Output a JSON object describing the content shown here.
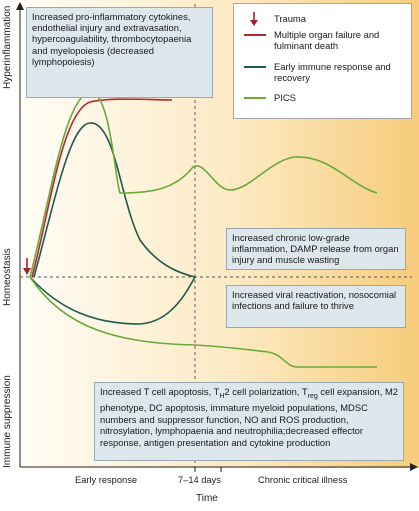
{
  "y_axis": {
    "top_label": "Hyperinflammation",
    "middle_label": "Homeostasis",
    "bottom_label": "Immune suppression"
  },
  "x_axis": {
    "title": "Time",
    "early_label": "Early response",
    "mid_label": "7–14 days",
    "late_label": "Chronic critical illness"
  },
  "legend": {
    "trauma": "Trauma",
    "death": "Multiple organ failure and fulminant death",
    "recovery": "Early immune response and recovery",
    "pics": "PICS"
  },
  "boxes": {
    "hyperinflammation": "Increased pro-inflammatory cytokines, endothelial injury and extravasation, hypercoagulability, thrombocytopaenia and myelopoiesis (decreased lymphopoiesis)",
    "chronic_inflammation": "Increased chronic low-grade inflammation, DAMP release from organ injury and muscle wasting",
    "viral": "Increased viral reactivation, nosocomial infections and failure to thrive",
    "suppression_line1_pre": "Increased T cell apoptosis, T",
    "suppression_line1_sub": "H",
    "suppression_line1_mid": "2 cell polarization, T",
    "suppression_line1_sub2": "reg",
    "suppression_line1_post": " cell",
    "suppression_rest": "expansion, M2 phenotype, DC apoptosis, immature myeloid populations, MDSC numbers and suppressor function, NO and ROS production, nitrosylation, lymphopaenia and neutrophilia;decreased effector response, antigen presentation and cytokine production"
  },
  "colors": {
    "death": "#b5262d",
    "recovery": "#1d5a4c",
    "pics": "#6aaa3a",
    "trauma": "#a0222a",
    "box_fill": "#dde7ec",
    "gradient_light": "#fffdf6",
    "gradient_dark": "#f6cc7a"
  }
}
